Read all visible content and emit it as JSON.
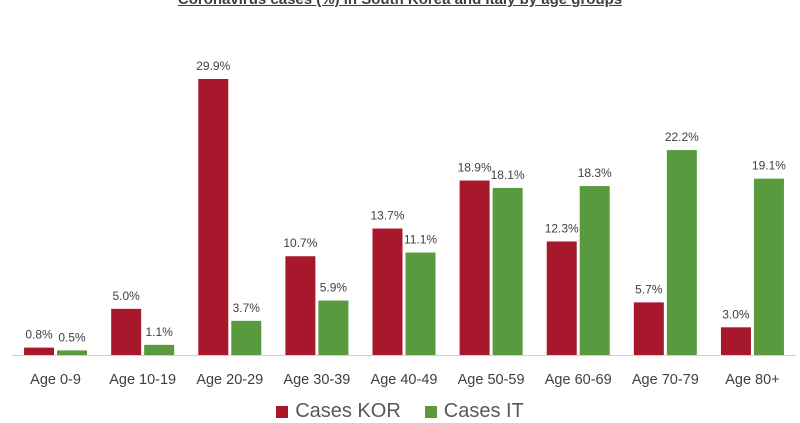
{
  "chart_data": {
    "type": "bar",
    "title": "Coronavirus cases (%) in South Korea and Italy by age groups",
    "categories": [
      "Age 0-9",
      "Age 10-19",
      "Age 20-29",
      "Age 30-39",
      "Age 40-49",
      "Age 50-59",
      "Age 60-69",
      "Age 70-79",
      "Age 80+"
    ],
    "series": [
      {
        "name": "Cases KOR",
        "color": "#A8182D",
        "values": [
          0.8,
          5.0,
          29.9,
          10.7,
          13.7,
          18.9,
          12.3,
          5.7,
          3.0
        ],
        "labels": [
          "0.8%",
          "5.0%",
          "29.9%",
          "10.7%",
          "13.7%",
          "18.9%",
          "12.3%",
          "5.7%",
          "3.0%"
        ]
      },
      {
        "name": "Cases IT",
        "color": "#5A9A3F",
        "values": [
          0.5,
          1.1,
          3.7,
          5.9,
          11.1,
          18.1,
          18.3,
          22.2,
          19.1
        ],
        "labels": [
          "0.5%",
          "1.1%",
          "3.7%",
          "5.9%",
          "11.1%",
          "18.1%",
          "18.3%",
          "22.2%",
          "19.1%"
        ]
      }
    ],
    "xlabel": "",
    "ylabel": "",
    "ylim": [
      0,
      30
    ],
    "grid": false,
    "legend_position": "bottom"
  }
}
